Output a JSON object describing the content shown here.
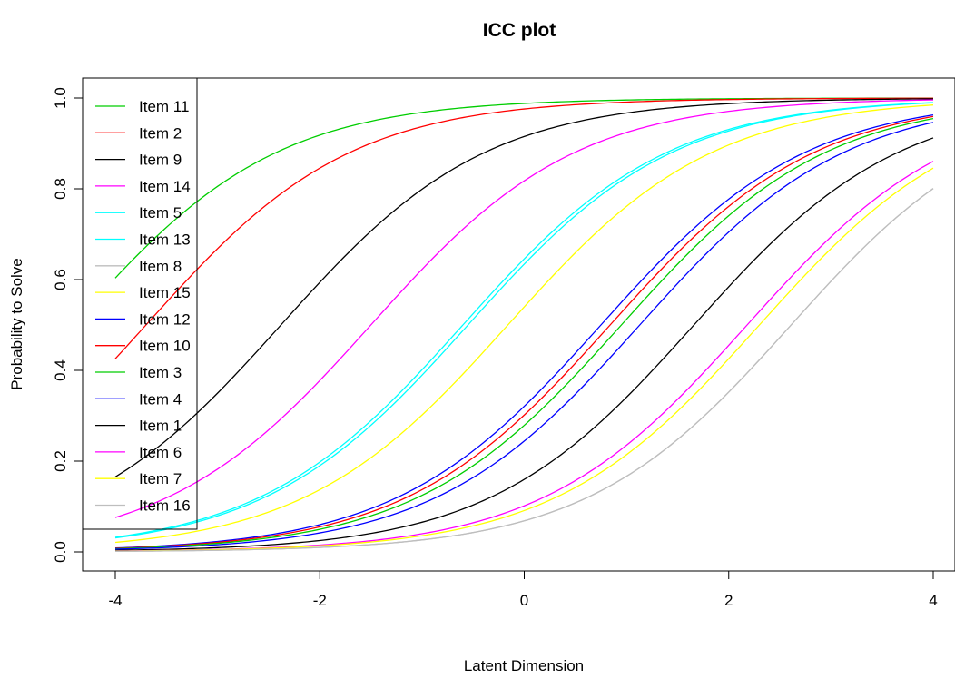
{
  "chart_data": {
    "type": "line",
    "title": "ICC plot",
    "xlabel": "Latent Dimension",
    "ylabel": "Probability to Solve",
    "xlim": [
      -4,
      4
    ],
    "ylim": [
      0,
      1
    ],
    "x_ticks": [
      -4,
      -2,
      0,
      2,
      4
    ],
    "y_ticks": [
      0.0,
      0.2,
      0.4,
      0.6,
      0.8,
      1.0
    ],
    "x_tick_labels": [
      "-4",
      "-2",
      "0",
      "2",
      "4"
    ],
    "y_tick_labels": [
      "0.0",
      "0.2",
      "0.4",
      "0.6",
      "0.8",
      "1.0"
    ],
    "grid": false,
    "legend_position": "top-left",
    "model": "Rasch: P(theta) = 1 / (1 + exp(-(theta - b)))",
    "series": [
      {
        "name": "Item 11",
        "color": "#00CD00",
        "difficulty": -4.42
      },
      {
        "name": "Item 2",
        "color": "#FF0000",
        "difficulty": -3.7
      },
      {
        "name": "Item 9",
        "color": "#000000",
        "difficulty": -2.38
      },
      {
        "name": "Item 14",
        "color": "#FF00FF",
        "difficulty": -1.5
      },
      {
        "name": "Item 5",
        "color": "#00FFFF",
        "difficulty": -0.6
      },
      {
        "name": "Item 13",
        "color": "#00FFFF",
        "difficulty": -0.55
      },
      {
        "name": "Item 8",
        "color": "#BEBEBE",
        "difficulty": 2.61
      },
      {
        "name": "Item 15",
        "color": "#FFFF00",
        "difficulty": -0.16
      },
      {
        "name": "Item 12",
        "color": "#0000FF",
        "difficulty": 0.75
      },
      {
        "name": "Item 10",
        "color": "#FF0000",
        "difficulty": 0.84
      },
      {
        "name": "Item 3",
        "color": "#00CD00",
        "difficulty": 0.95
      },
      {
        "name": "Item 4",
        "color": "#0000FF",
        "difficulty": 1.13
      },
      {
        "name": "Item 1",
        "color": "#000000",
        "difficulty": 1.66
      },
      {
        "name": "Item 6",
        "color": "#FF00FF",
        "difficulty": 2.18
      },
      {
        "name": "Item 7",
        "color": "#FFFF00",
        "difficulty": 2.3
      },
      {
        "name": "Item 16",
        "color": "#BEBEBE",
        "difficulty": 2.61
      }
    ]
  }
}
